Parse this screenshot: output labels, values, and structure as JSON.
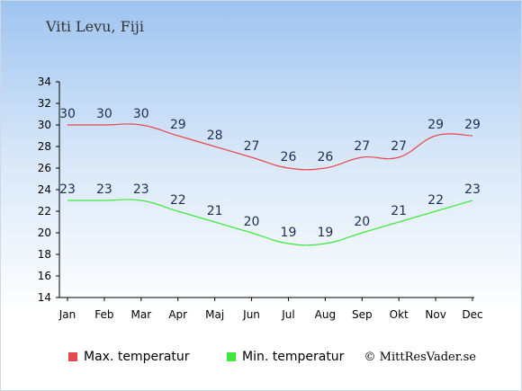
{
  "title": "Viti Levu, Fiji",
  "credit": "© MittResVader.se",
  "chart_data": {
    "type": "line",
    "categories": [
      "Jan",
      "Feb",
      "Mar",
      "Apr",
      "Maj",
      "Jun",
      "Jul",
      "Aug",
      "Sep",
      "Okt",
      "Nov",
      "Dec"
    ],
    "series": [
      {
        "name": "Max. temperatur",
        "color": "#e8474d",
        "values": [
          30,
          30,
          30,
          29,
          28,
          27,
          26,
          26,
          27,
          27,
          29,
          29
        ]
      },
      {
        "name": "Min. temperatur",
        "color": "#3fe83f",
        "values": [
          23,
          23,
          23,
          22,
          21,
          20,
          19,
          19,
          20,
          21,
          22,
          23
        ]
      }
    ],
    "yticks": [
      14,
      16,
      18,
      20,
      22,
      24,
      26,
      28,
      30,
      32,
      34
    ],
    "ylim": [
      14,
      34
    ],
    "grid": false,
    "legend": "bottom"
  }
}
